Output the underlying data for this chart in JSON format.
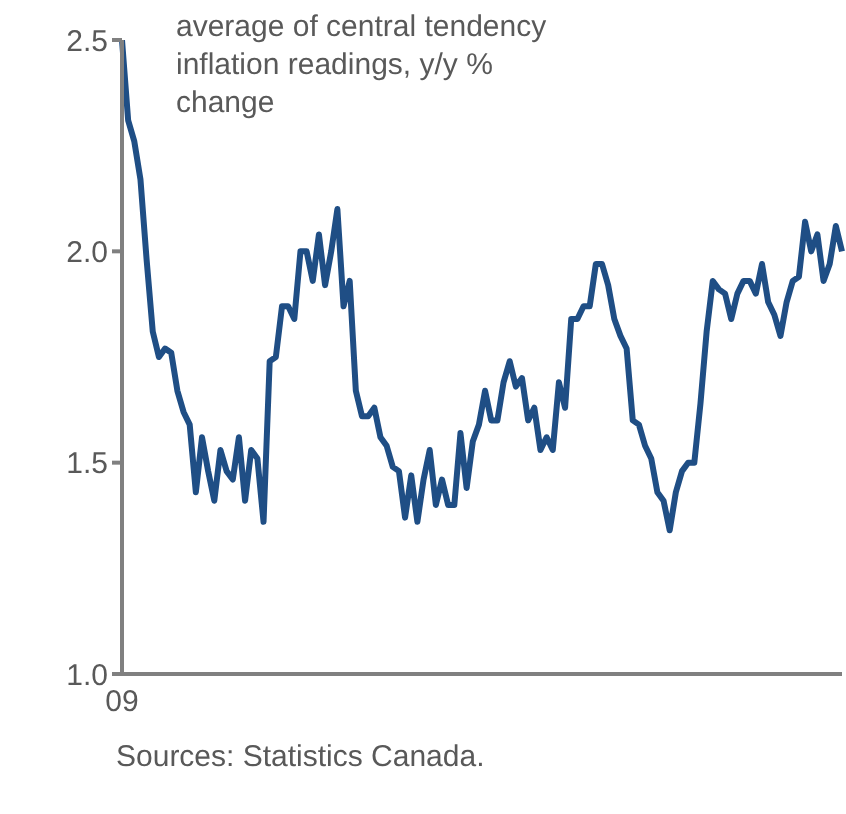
{
  "chart_data": {
    "type": "line",
    "categories": [
      "09",
      null,
      null,
      null,
      null,
      null,
      null,
      null,
      null,
      null,
      null,
      null,
      null,
      null,
      null,
      null,
      null,
      null,
      null,
      null,
      null,
      null,
      null,
      null,
      null,
      null,
      null,
      null,
      null,
      null,
      null,
      null,
      null,
      null,
      null,
      null,
      null,
      null,
      null,
      null,
      null,
      null,
      null,
      null,
      null,
      null,
      null,
      null,
      null,
      null,
      null,
      null,
      null,
      null,
      null,
      null,
      null,
      null,
      null,
      null,
      null,
      null,
      null,
      null,
      null,
      null,
      null,
      null,
      null,
      null,
      null,
      null,
      null,
      null,
      null,
      null,
      null,
      null,
      null,
      null,
      null,
      null,
      null,
      null,
      null,
      null,
      null,
      null,
      null,
      null,
      null,
      null,
      null,
      null,
      null,
      null,
      null,
      null,
      null,
      null,
      null,
      null,
      null,
      null,
      null,
      null,
      null,
      null,
      null,
      null,
      null,
      null,
      null,
      null,
      null,
      null,
      null,
      null
    ],
    "series": [
      {
        "color": "#1f4e85",
        "values": [
          2.5,
          2.31,
          2.26,
          2.17,
          1.98,
          1.81,
          1.75,
          1.77,
          1.76,
          1.67,
          1.62,
          1.59,
          1.43,
          1.56,
          1.48,
          1.41,
          1.53,
          1.48,
          1.46,
          1.56,
          1.41,
          1.53,
          1.51,
          1.36,
          1.74,
          1.75,
          1.87,
          1.87,
          1.84,
          2.0,
          2.0,
          1.93,
          2.04,
          1.92,
          2.0,
          2.1,
          1.87,
          1.93,
          1.67,
          1.61,
          1.61,
          1.63,
          1.56,
          1.54,
          1.49,
          1.48,
          1.37,
          1.47,
          1.36,
          1.46,
          1.53,
          1.4,
          1.46,
          1.4,
          1.4,
          1.57,
          1.44,
          1.55,
          1.59,
          1.67,
          1.6,
          1.6,
          1.69,
          1.74,
          1.68,
          1.7,
          1.6,
          1.63,
          1.53,
          1.56,
          1.53,
          1.69,
          1.63,
          1.84,
          1.84,
          1.87,
          1.87,
          1.97,
          1.97,
          1.92,
          1.84,
          1.8,
          1.77,
          1.6,
          1.59,
          1.54,
          1.51,
          1.43,
          1.41,
          1.34,
          1.43,
          1.48,
          1.5,
          1.5,
          1.64,
          1.81,
          1.93,
          1.91,
          1.9,
          1.84,
          1.9,
          1.93,
          1.93,
          1.9,
          1.97,
          1.88,
          1.85,
          1.8,
          1.88,
          1.93,
          1.94,
          2.07,
          2.0,
          2.04,
          1.93,
          1.97,
          2.06,
          2.0
        ]
      }
    ],
    "ylim": [
      1.0,
      2.5
    ],
    "yticks": [
      {
        "value": 1.0,
        "label": "1.0"
      },
      {
        "value": 1.5,
        "label": "1.5"
      },
      {
        "value": 2.0,
        "label": "2.0"
      },
      {
        "value": 2.5,
        "label": "2.5"
      }
    ],
    "grid": false,
    "legend": false,
    "marker": "none",
    "line_style": "solid",
    "annotations": [
      "average of central tendency inflation readings, y/y % change",
      "Sources: Statistics Canada."
    ]
  }
}
